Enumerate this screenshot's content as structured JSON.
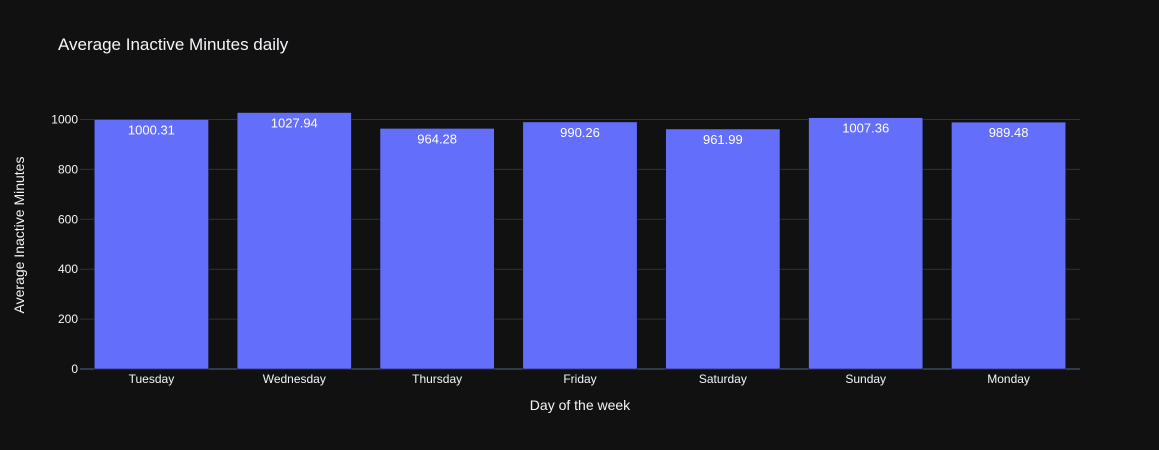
{
  "chart_data": {
    "type": "bar",
    "title": "Average Inactive Minutes daily",
    "xlabel": "Day of the week",
    "ylabel": "Average Inactive Minutes",
    "categories": [
      "Tuesday",
      "Wednesday",
      "Thursday",
      "Friday",
      "Saturday",
      "Sunday",
      "Monday"
    ],
    "values": [
      1000.31,
      1027.94,
      964.28,
      990.26,
      961.99,
      1007.36,
      989.48
    ],
    "data_labels": [
      "1000.31",
      "1027.94",
      "964.28",
      "990.26",
      "961.99",
      "1007.36",
      "989.48"
    ],
    "y_ticks": [
      0,
      200,
      400,
      600,
      800,
      1000
    ],
    "ylim": [
      0,
      1000
    ],
    "grid": true,
    "legend": "none",
    "colors": {
      "background": "#111111",
      "bar": "#636efa",
      "text": "#f2f5fa",
      "grid": "#283442",
      "zero_line": "#506784"
    }
  }
}
